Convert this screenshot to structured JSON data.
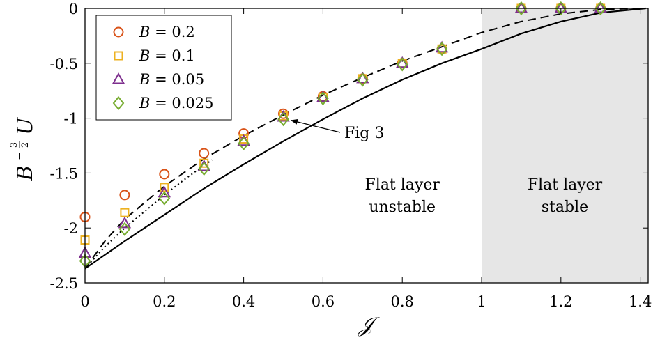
{
  "chart_data": {
    "type": "scatter",
    "xlabel": "𝒥",
    "ylabel": "U",
    "ylabel_prefix": "B",
    "ylabel_exponent_num": "3",
    "ylabel_exponent_den": "2",
    "xlim": [
      0,
      1.42
    ],
    "ylim": [
      -2.5,
      0
    ],
    "xticks": [
      0,
      0.2,
      0.4,
      0.6,
      0.8,
      1,
      1.2,
      1.4
    ],
    "xtick_labels": [
      "0",
      "0.2",
      "0.4",
      "0.6",
      "0.8",
      "1",
      "1.2",
      "1.4"
    ],
    "yticks": [
      0,
      -0.5,
      -1,
      -1.5,
      -2,
      -2.5
    ],
    "ytick_labels": [
      "0",
      "-0.5",
      "-1",
      "-1.5",
      "-2",
      "-2.5"
    ],
    "grid": false,
    "legend_position": "top-left",
    "shaded_region": {
      "x": [
        1,
        1.42
      ],
      "color": "#e6e6e6"
    },
    "series": [
      {
        "name": "B = 0.2",
        "legend_var": "B",
        "legend_value": "0.2",
        "marker": "circle",
        "color": "#d95319",
        "x": [
          0,
          0.1,
          0.2,
          0.3,
          0.4,
          0.5,
          0.6,
          0.7,
          0.8,
          0.9,
          1.1,
          1.2,
          1.3
        ],
        "y": [
          -1.9,
          -1.7,
          -1.51,
          -1.32,
          -1.14,
          -0.96,
          -0.8,
          -0.64,
          -0.5,
          -0.37,
          0,
          0,
          0
        ]
      },
      {
        "name": "B = 0.1",
        "legend_var": "B",
        "legend_value": "0.1",
        "marker": "square",
        "color": "#edb120",
        "x": [
          0,
          0.1,
          0.2,
          0.3,
          0.4,
          0.5,
          0.6,
          0.7,
          0.8,
          0.9,
          1.1,
          1.2,
          1.3
        ],
        "y": [
          -2.11,
          -1.86,
          -1.63,
          -1.41,
          -1.19,
          -0.98,
          -0.81,
          -0.64,
          -0.5,
          -0.37,
          0,
          0,
          0
        ]
      },
      {
        "name": "B = 0.05",
        "legend_var": "B",
        "legend_value": "0.05",
        "marker": "triangle",
        "color": "#7e2f8e",
        "x": [
          0,
          0.1,
          0.2,
          0.3,
          0.4,
          0.5,
          0.6,
          0.7,
          0.8,
          0.9,
          1.1,
          1.2,
          1.3
        ],
        "y": [
          -2.23,
          -1.96,
          -1.68,
          -1.44,
          -1.21,
          -0.99,
          -0.81,
          -0.64,
          -0.5,
          -0.36,
          0,
          0,
          0
        ]
      },
      {
        "name": "B = 0.025",
        "legend_var": "B",
        "legend_value": "0.025",
        "marker": "diamond",
        "color": "#77ac30",
        "x": [
          0,
          0.1,
          0.2,
          0.3,
          0.4,
          0.5,
          0.6,
          0.7,
          0.8,
          0.9,
          1.1,
          1.2,
          1.3
        ],
        "y": [
          -2.3,
          -2.01,
          -1.73,
          -1.46,
          -1.23,
          -1.01,
          -0.82,
          -0.65,
          -0.51,
          -0.37,
          0,
          0,
          0
        ]
      }
    ],
    "lines": [
      {
        "style": "solid",
        "x": [
          0,
          0.1,
          0.2,
          0.3,
          0.4,
          0.5,
          0.6,
          0.7,
          0.8,
          0.9,
          1.0,
          1.1,
          1.2,
          1.3,
          1.4142
        ],
        "y": [
          -2.37,
          -2.12,
          -1.88,
          -1.64,
          -1.42,
          -1.21,
          -1.01,
          -0.82,
          -0.65,
          -0.5,
          -0.37,
          -0.23,
          -0.12,
          -0.04,
          0
        ]
      },
      {
        "style": "dashed",
        "x": [
          0,
          0.05,
          0.1,
          0.2,
          0.3,
          0.4,
          0.5,
          0.6,
          0.7,
          0.8,
          0.9,
          1.0,
          1.1,
          1.2,
          1.3,
          1.4142
        ],
        "y": [
          -2.37,
          -2.12,
          -1.92,
          -1.62,
          -1.37,
          -1.16,
          -0.97,
          -0.79,
          -0.63,
          -0.48,
          -0.35,
          -0.22,
          -0.12,
          -0.05,
          -0.01,
          0
        ]
      },
      {
        "style": "dotted",
        "x": [
          0,
          0.05,
          0.1,
          0.15,
          0.2,
          0.25,
          0.3,
          0.32
        ],
        "y": [
          -2.37,
          -2.17,
          -2.0,
          -1.85,
          -1.7,
          -1.56,
          -1.43,
          -1.38
        ]
      }
    ],
    "annotations": [
      {
        "text": "Fig 3",
        "arrow_to": [
          0.52,
          -1.02
        ]
      },
      {
        "line1": "Flat layer",
        "line2": "unstable",
        "x": 0.8,
        "y": -1.65
      },
      {
        "line1": "Flat layer",
        "line2": "stable",
        "x": 1.21,
        "y": -1.65
      }
    ]
  }
}
